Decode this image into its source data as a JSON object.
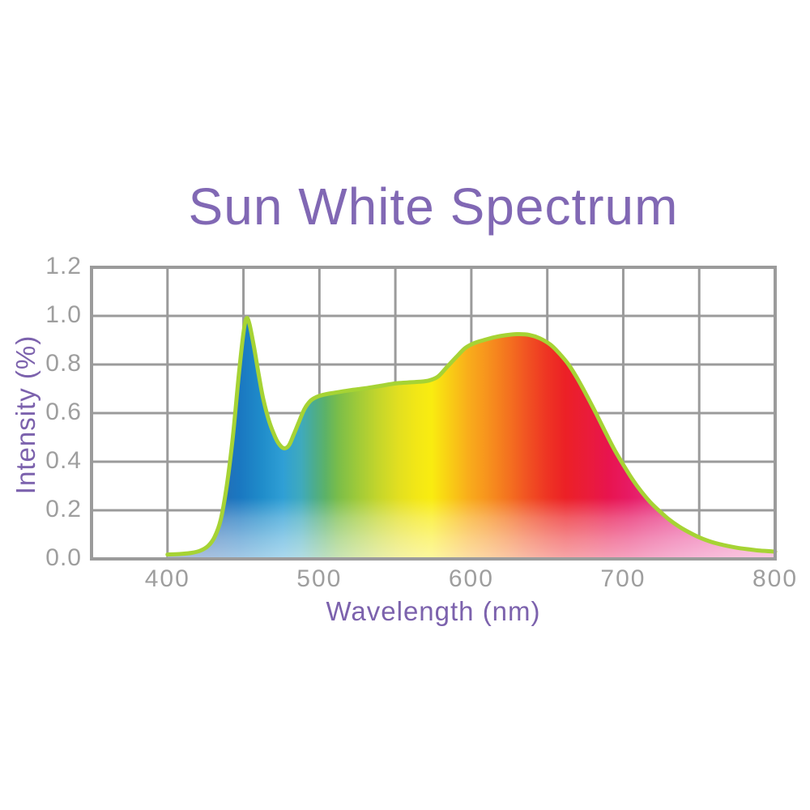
{
  "title": "Sun White Spectrum",
  "colors": {
    "title_text": "#8168b4",
    "axis_label_text": "#7c62ad",
    "tick_text": "#9e9e9e",
    "grid_line": "#9b9b9b",
    "plot_border": "#9b9b9b",
    "curve_stroke": "#a6d334",
    "background": "#ffffff"
  },
  "chart_data": {
    "type": "area",
    "title": "Sun White Spectrum",
    "xlabel": "Wavelength (nm)",
    "ylabel": "Intensity (%)",
    "xlim": [
      350,
      800
    ],
    "ylim": [
      0,
      1.2
    ],
    "x_ticks": [
      {
        "label": "400",
        "value": 400
      },
      {
        "label": "500",
        "value": 500
      },
      {
        "label": "600",
        "value": 600
      },
      {
        "label": "700",
        "value": 700
      },
      {
        "label": "800",
        "value": 800
      }
    ],
    "y_ticks": [
      {
        "label": "1.2",
        "value": 1.2
      },
      {
        "label": "1.0",
        "value": 1.0
      },
      {
        "label": "0.8",
        "value": 0.8
      },
      {
        "label": "0.6",
        "value": 0.6
      },
      {
        "label": "0.4",
        "value": 0.4
      },
      {
        "label": "0.2",
        "value": 0.2
      },
      {
        "label": "0.0",
        "value": 0.0
      }
    ],
    "grid": {
      "on": true,
      "x_step": 50,
      "y_step": 0.2
    },
    "legend": "none",
    "series": [
      {
        "name": "sun-white-spectrum",
        "points": [
          [
            400,
            0.018
          ],
          [
            408,
            0.02
          ],
          [
            416,
            0.025
          ],
          [
            422,
            0.035
          ],
          [
            427,
            0.055
          ],
          [
            431,
            0.09
          ],
          [
            435,
            0.16
          ],
          [
            439,
            0.3
          ],
          [
            443,
            0.5
          ],
          [
            447,
            0.76
          ],
          [
            450,
            0.93
          ],
          [
            452,
            0.99
          ],
          [
            454,
            0.965
          ],
          [
            457,
            0.87
          ],
          [
            460,
            0.76
          ],
          [
            463,
            0.66
          ],
          [
            467,
            0.565
          ],
          [
            471,
            0.5
          ],
          [
            474,
            0.468
          ],
          [
            477,
            0.455
          ],
          [
            480,
            0.468
          ],
          [
            483,
            0.51
          ],
          [
            486,
            0.556
          ],
          [
            490,
            0.615
          ],
          [
            494,
            0.65
          ],
          [
            498,
            0.666
          ],
          [
            503,
            0.676
          ],
          [
            510,
            0.684
          ],
          [
            520,
            0.694
          ],
          [
            530,
            0.702
          ],
          [
            540,
            0.712
          ],
          [
            550,
            0.722
          ],
          [
            558,
            0.726
          ],
          [
            566,
            0.729
          ],
          [
            572,
            0.734
          ],
          [
            578,
            0.75
          ],
          [
            584,
            0.79
          ],
          [
            590,
            0.83
          ],
          [
            596,
            0.868
          ],
          [
            602,
            0.888
          ],
          [
            608,
            0.9
          ],
          [
            615,
            0.912
          ],
          [
            622,
            0.92
          ],
          [
            630,
            0.925
          ],
          [
            638,
            0.922
          ],
          [
            645,
            0.908
          ],
          [
            652,
            0.882
          ],
          [
            658,
            0.845
          ],
          [
            664,
            0.8
          ],
          [
            670,
            0.74
          ],
          [
            676,
            0.672
          ],
          [
            682,
            0.6
          ],
          [
            688,
            0.525
          ],
          [
            694,
            0.452
          ],
          [
            700,
            0.388
          ],
          [
            706,
            0.328
          ],
          [
            712,
            0.276
          ],
          [
            718,
            0.232
          ],
          [
            724,
            0.196
          ],
          [
            730,
            0.163
          ],
          [
            737,
            0.132
          ],
          [
            744,
            0.107
          ],
          [
            751,
            0.086
          ],
          [
            758,
            0.07
          ],
          [
            766,
            0.057
          ],
          [
            774,
            0.047
          ],
          [
            782,
            0.04
          ],
          [
            790,
            0.034
          ],
          [
            800,
            0.03
          ]
        ]
      }
    ],
    "style": {
      "stroke_color": "#a6d334",
      "stroke_width": 5,
      "gradient_stops": [
        {
          "wl": 400,
          "color": "#3a55a7"
        },
        {
          "wl": 428,
          "color": "#2767b1"
        },
        {
          "wl": 448,
          "color": "#1a78c1"
        },
        {
          "wl": 462,
          "color": "#1f8cca"
        },
        {
          "wl": 476,
          "color": "#2f9fd5"
        },
        {
          "wl": 488,
          "color": "#3faabd"
        },
        {
          "wl": 496,
          "color": "#4bac90"
        },
        {
          "wl": 504,
          "color": "#5cb267"
        },
        {
          "wl": 512,
          "color": "#79bd4a"
        },
        {
          "wl": 524,
          "color": "#9cc93a"
        },
        {
          "wl": 538,
          "color": "#c2d52c"
        },
        {
          "wl": 552,
          "color": "#e2df20"
        },
        {
          "wl": 564,
          "color": "#f2e716"
        },
        {
          "wl": 574,
          "color": "#f9ec10"
        },
        {
          "wl": 586,
          "color": "#f9cd15"
        },
        {
          "wl": 598,
          "color": "#f9ad1b"
        },
        {
          "wl": 610,
          "color": "#f7941d"
        },
        {
          "wl": 624,
          "color": "#f4731f"
        },
        {
          "wl": 636,
          "color": "#f15422"
        },
        {
          "wl": 650,
          "color": "#ee3423"
        },
        {
          "wl": 662,
          "color": "#ec2026"
        },
        {
          "wl": 676,
          "color": "#ea1c39"
        },
        {
          "wl": 690,
          "color": "#e8144e"
        },
        {
          "wl": 704,
          "color": "#e71a64"
        },
        {
          "wl": 718,
          "color": "#e72b79"
        },
        {
          "wl": 734,
          "color": "#e93e8d"
        },
        {
          "wl": 750,
          "color": "#eb4f9c"
        },
        {
          "wl": 768,
          "color": "#ee61a7"
        },
        {
          "wl": 784,
          "color": "#f06db0"
        },
        {
          "wl": 800,
          "color": "#f178b6"
        }
      ],
      "bottom_fade_stops": [
        {
          "offset": 0.0,
          "alpha": 0.0
        },
        {
          "offset": 0.79,
          "alpha": 0.0
        },
        {
          "offset": 0.86,
          "alpha": 0.28
        },
        {
          "offset": 0.93,
          "alpha": 0.46
        },
        {
          "offset": 1.0,
          "alpha": 0.6
        }
      ]
    }
  }
}
